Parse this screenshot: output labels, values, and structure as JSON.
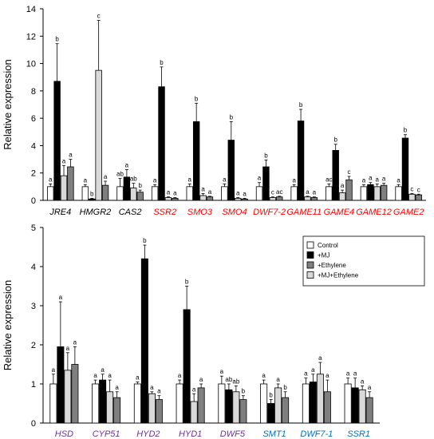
{
  "colors": {
    "control": "#ffffff",
    "mj": "#000000",
    "ethylene": "#7f7f7f",
    "mj_ethylene": "#d9d9d9",
    "label_black": "#000000",
    "label_red": "#ff0000",
    "label_purple": "#7030a0",
    "label_blue": "#0070c0"
  },
  "chart_data": [
    {
      "type": "bar",
      "ylabel": "Relative expression",
      "ylim": [
        0,
        14
      ],
      "yticks": [
        "0",
        "2",
        "4",
        "6",
        "8",
        "10",
        "12",
        "14"
      ],
      "error_bars": true,
      "series_order": [
        "control",
        "mj",
        "mj_ethylene",
        "ethylene"
      ],
      "categories": [
        {
          "label": "JRE4",
          "color": "label_black",
          "values": [
            1.0,
            8.7,
            1.8,
            2.45
          ],
          "errors": [
            0.2,
            2.75,
            0.75,
            0.55
          ],
          "sig": [
            "a",
            "b",
            "a",
            "a"
          ]
        },
        {
          "label": "HMGR2",
          "color": "label_black",
          "values": [
            1.0,
            0.1,
            9.5,
            1.1
          ],
          "errors": [
            0.15,
            0.05,
            3.65,
            0.3
          ],
          "sig": [
            "a",
            "b",
            "c",
            "a"
          ]
        },
        {
          "label": "CAS2",
          "color": "label_black",
          "values": [
            1.0,
            1.7,
            0.9,
            0.6
          ],
          "errors": [
            0.6,
            0.55,
            0.35,
            0.15
          ],
          "sig": [
            "ab",
            "a",
            "ab",
            "b"
          ]
        },
        {
          "label": "SSR2",
          "color": "label_red",
          "values": [
            1.0,
            8.3,
            0.2,
            0.15
          ],
          "errors": [
            0.15,
            1.45,
            0.05,
            0.05
          ],
          "sig": [
            "a",
            "b",
            "a",
            "a"
          ]
        },
        {
          "label": "SMO3",
          "color": "label_red",
          "values": [
            1.0,
            5.75,
            0.35,
            0.25
          ],
          "errors": [
            0.2,
            1.35,
            0.15,
            0.05
          ],
          "sig": [
            "a",
            "b",
            "a",
            "a"
          ]
        },
        {
          "label": "SMO4",
          "color": "label_red",
          "values": [
            1.0,
            4.4,
            0.15,
            0.1
          ],
          "errors": [
            0.2,
            1.35,
            0.05,
            0.05
          ],
          "sig": [
            "a",
            "b",
            "a",
            "a"
          ]
        },
        {
          "label": "DWF7-2",
          "color": "label_red",
          "values": [
            1.0,
            2.45,
            0.2,
            0.25
          ],
          "errors": [
            0.3,
            0.5,
            0.05,
            0.05
          ],
          "sig": [
            "a",
            "b",
            "c",
            "ac"
          ]
        },
        {
          "label": "GAME11",
          "color": "label_red",
          "values": [
            1.0,
            5.8,
            0.25,
            0.2
          ],
          "errors": [
            0.15,
            0.85,
            0.05,
            0.05
          ],
          "sig": [
            "a",
            "b",
            "a",
            "a"
          ]
        },
        {
          "label": "GAME4",
          "color": "label_red",
          "values": [
            1.0,
            3.65,
            0.55,
            1.5
          ],
          "errors": [
            0.2,
            0.45,
            0.2,
            0.25
          ],
          "sig": [
            "ac",
            "b",
            "a",
            "c"
          ]
        },
        {
          "label": "GAME12",
          "color": "label_red",
          "values": [
            1.0,
            1.15,
            1.0,
            1.1
          ],
          "errors": [
            0.15,
            0.15,
            0.2,
            0.15
          ],
          "sig": [
            "a",
            "a",
            "a",
            "a"
          ]
        },
        {
          "label": "GAME2",
          "color": "label_red",
          "values": [
            1.0,
            4.55,
            0.45,
            0.4
          ],
          "errors": [
            0.15,
            0.25,
            0.05,
            0.05
          ],
          "sig": [
            "a",
            "b",
            "c",
            "c"
          ]
        }
      ]
    },
    {
      "type": "bar",
      "ylabel": "Relative expression",
      "ylim": [
        0,
        5
      ],
      "yticks": [
        "0",
        "1",
        "2",
        "3",
        "4",
        "5"
      ],
      "error_bars": true,
      "legend": {
        "position": "top-right",
        "entries": [
          {
            "label": "Control",
            "color": "control"
          },
          {
            "label": "+MJ",
            "color": "mj"
          },
          {
            "label": "+Ethylene",
            "color": "ethylene"
          },
          {
            "label": "+MJ+Ethylene",
            "color": "mj_ethylene"
          }
        ]
      },
      "series_order": [
        "control",
        "mj",
        "mj_ethylene",
        "ethylene"
      ],
      "categories": [
        {
          "label": "HSD",
          "color": "label_purple",
          "values": [
            1.0,
            1.95,
            1.35,
            1.5
          ],
          "errors": [
            0.25,
            1.15,
            0.45,
            0.45
          ],
          "sig": [
            "a",
            "a",
            "a",
            "a"
          ]
        },
        {
          "label": "CYP51",
          "color": "label_purple",
          "values": [
            1.0,
            1.1,
            0.8,
            0.65
          ],
          "errors": [
            0.1,
            0.15,
            0.3,
            0.15
          ],
          "sig": [
            "a",
            "a",
            "a",
            "a"
          ]
        },
        {
          "label": "HYD2",
          "color": "label_purple",
          "values": [
            1.0,
            4.2,
            0.75,
            0.6
          ],
          "errors": [
            0.05,
            0.35,
            0.05,
            0.1
          ],
          "sig": [
            "a",
            "b",
            "a",
            "a"
          ]
        },
        {
          "label": "HYD1",
          "color": "label_purple",
          "values": [
            1.0,
            2.9,
            0.55,
            0.9
          ],
          "errors": [
            0.1,
            0.6,
            0.2,
            0.1
          ],
          "sig": [
            "a",
            "b",
            "a",
            "a"
          ]
        },
        {
          "label": "DWF5",
          "color": "label_purple",
          "values": [
            1.0,
            0.85,
            0.8,
            0.6
          ],
          "errors": [
            0.2,
            0.15,
            0.15,
            0.1
          ],
          "sig": [
            "a",
            "ab",
            "ab",
            "b"
          ]
        },
        {
          "label": "SMT1",
          "color": "label_blue",
          "values": [
            1.0,
            0.5,
            0.9,
            0.65
          ],
          "errors": [
            0.1,
            0.1,
            0.1,
            0.15
          ],
          "sig": [
            "a",
            "b",
            "a",
            "b"
          ]
        },
        {
          "label": "DWF7-1",
          "color": "label_blue",
          "values": [
            1.0,
            1.05,
            1.25,
            0.8
          ],
          "errors": [
            0.15,
            0.2,
            0.3,
            0.3
          ],
          "sig": [
            "a",
            "a",
            "a",
            "a"
          ]
        },
        {
          "label": "SSR1",
          "color": "label_blue",
          "values": [
            1.0,
            0.9,
            0.85,
            0.65
          ],
          "errors": [
            0.15,
            0.25,
            0.1,
            0.15
          ],
          "sig": [
            "a",
            "a",
            "a",
            "a"
          ]
        }
      ]
    }
  ]
}
